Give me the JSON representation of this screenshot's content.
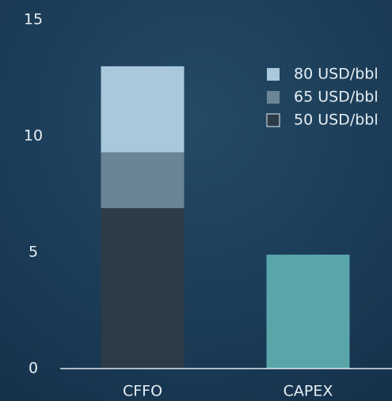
{
  "chart_data": {
    "type": "bar",
    "stacked": true,
    "categories": [
      "CFFO",
      "CAPEX"
    ],
    "series": [
      {
        "name": "50 USD/bbl",
        "color": "#2b3b48",
        "values": [
          6.9,
          null
        ]
      },
      {
        "name": "65 USD/bbl",
        "color": "#6b8597",
        "values": [
          2.4,
          null
        ]
      },
      {
        "name": "80 USD/bbl",
        "color": "#a9c8dc",
        "values": [
          3.7,
          null
        ]
      },
      {
        "color": "#58a6a9",
        "values": [
          null,
          4.9
        ]
      }
    ],
    "ylim": [
      0,
      15
    ],
    "yticks": [
      0,
      5,
      10,
      15
    ],
    "grid": false,
    "legend": "upper right"
  }
}
